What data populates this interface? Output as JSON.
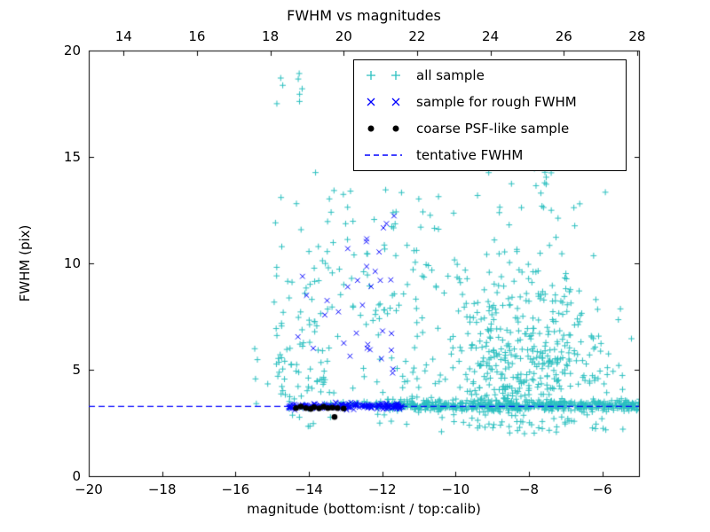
{
  "figure": {
    "title": "FWHM vs magnitudes",
    "xlabel": "magnitude (bottom:isnt / top:calib)",
    "ylabel": "FWHM (pix)"
  },
  "chart_data": {
    "type": "scatter",
    "title": "FWHM vs magnitudes",
    "xlabel": "magnitude (bottom:isnt / top:calib)",
    "ylabel": "FWHM (pix)",
    "xlim": [
      -20,
      -5
    ],
    "ylim": [
      0,
      20
    ],
    "x_ticks_bottom": [
      -20,
      -18,
      -16,
      -14,
      -12,
      -10,
      -8,
      -6
    ],
    "x_ticks_top": [
      14,
      16,
      18,
      20,
      22,
      24,
      26,
      28
    ],
    "top_axis_offset": 33.05,
    "y_ticks": [
      0,
      5,
      10,
      15,
      20
    ],
    "grid": false,
    "legend_position": "upper right",
    "seed": 42,
    "series": [
      {
        "name": "all sample",
        "marker": "plus",
        "color": "#2abfbf",
        "clusters": [
          {
            "n": 95,
            "x": {
              "dist": "uniform",
              "a": -14.95,
              "b": -13.55
            },
            "y": {
              "dist": "normal",
              "mean": 6.0,
              "sd": 3.4,
              "min": 2.3,
              "max": 20
            }
          },
          {
            "n": 8,
            "x": {
              "dist": "uniform",
              "a": -15.0,
              "b": -14.15
            },
            "y": {
              "dist": "uniform",
              "a": 16.5,
              "b": 20
            }
          },
          {
            "n": 120,
            "x": {
              "dist": "uniform",
              "a": -13.6,
              "b": -10.4
            },
            "y": {
              "dist": "uniform",
              "a": 2.4,
              "b": 13.5
            }
          },
          {
            "n": 430,
            "x": {
              "dist": "normal",
              "mean": -8.2,
              "sd": 1.25,
              "min": -11.4,
              "max": -4.85
            },
            "y": {
              "dist": "normal",
              "mean": 5.2,
              "sd": 1.9,
              "min": 2.2,
              "max": 15
            }
          },
          {
            "n": 60,
            "x": {
              "dist": "normal",
              "mean": -8.4,
              "sd": 1.15,
              "min": -10.8,
              "max": -5.2
            },
            "y": {
              "dist": "uniform",
              "a": 8,
              "b": 14.9
            }
          },
          {
            "n": 520,
            "x": {
              "dist": "uniform",
              "a": -11.8,
              "b": -4.85
            },
            "y": {
              "dist": "normal",
              "mean": 3.32,
              "sd": 0.13
            }
          },
          {
            "n": 45,
            "x": {
              "dist": "uniform",
              "a": -13.6,
              "b": -11.8
            },
            "y": {
              "dist": "normal",
              "mean": 3.35,
              "sd": 0.1
            }
          },
          {
            "n": 30,
            "x": {
              "dist": "uniform",
              "a": -10.6,
              "b": -5.8
            },
            "y": {
              "dist": "uniform",
              "a": 1.9,
              "b": 2.9
            }
          },
          {
            "n": 5,
            "x": {
              "dist": "uniform",
              "a": -15.6,
              "b": -14.9
            },
            "y": {
              "dist": "uniform",
              "a": 3.0,
              "b": 6.5
            }
          }
        ]
      },
      {
        "name": "sample for rough FWHM",
        "marker": "x",
        "color": "#0000ff",
        "clusters": [
          {
            "n": 185,
            "x": {
              "dist": "uniform",
              "a": -14.55,
              "b": -11.45
            },
            "y": {
              "dist": "normal",
              "mean": 3.27,
              "sd": 0.07
            }
          },
          {
            "n": 20,
            "x": {
              "dist": "uniform",
              "a": -12.5,
              "b": -11.55
            },
            "y": {
              "dist": "uniform",
              "a": 4.2,
              "b": 12.3
            }
          },
          {
            "n": 14,
            "x": {
              "dist": "uniform",
              "a": -14.3,
              "b": -12.5
            },
            "y": {
              "dist": "uniform",
              "a": 5.2,
              "b": 10.8
            }
          }
        ]
      },
      {
        "name": "coarse PSF-like sample",
        "marker": "dot",
        "color": "#000000",
        "points": [
          [
            -14.35,
            3.2
          ],
          [
            -14.22,
            3.27
          ],
          [
            -14.08,
            3.2
          ],
          [
            -13.95,
            3.16
          ],
          [
            -13.86,
            3.24
          ],
          [
            -13.72,
            3.19
          ],
          [
            -13.6,
            3.26
          ],
          [
            -13.48,
            3.2
          ],
          [
            -13.36,
            3.22
          ],
          [
            -13.22,
            3.2
          ],
          [
            -13.05,
            3.18
          ],
          [
            -13.3,
            2.78
          ]
        ]
      }
    ],
    "line": {
      "label": "tentative FWHM",
      "color": "#0000ff",
      "y": 3.3,
      "dash": [
        7,
        4
      ]
    }
  }
}
